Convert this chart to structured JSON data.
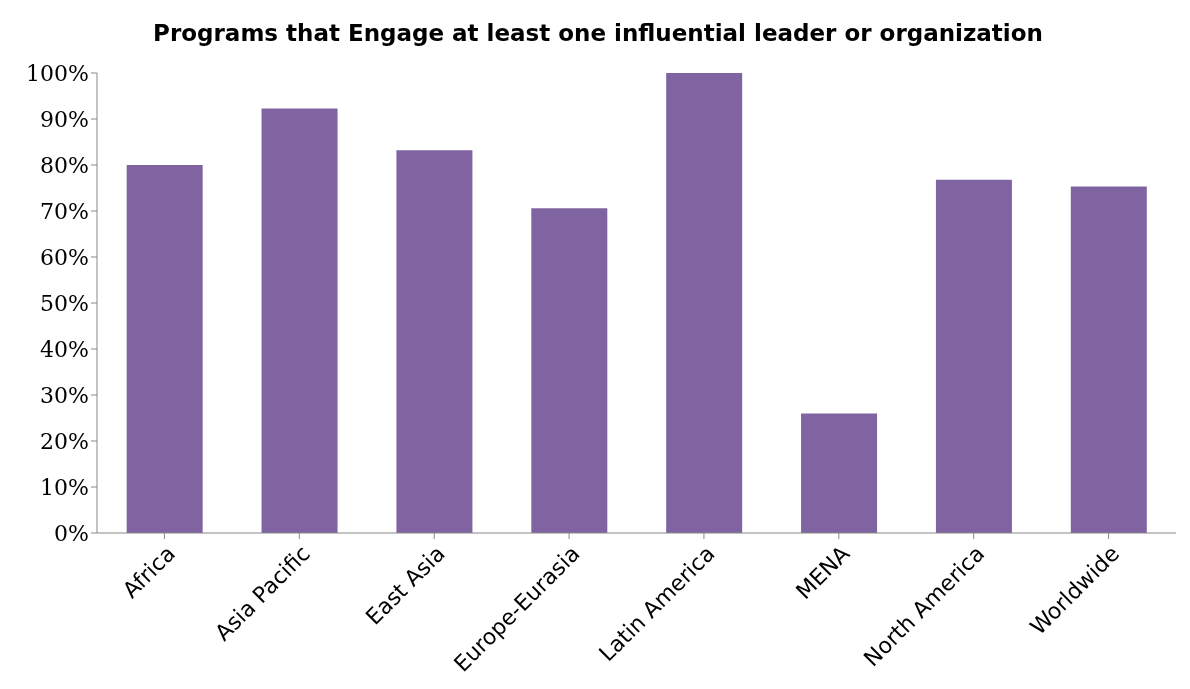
{
  "chart_data": {
    "type": "bar",
    "title": "Programs that Engage at least one influential leader or organization",
    "categories": [
      "Africa",
      "Asia Pacific",
      "East Asia",
      "Europe-Eurasia",
      "Latin America",
      "MENA",
      "North America",
      "Worldwide"
    ],
    "values": [
      80,
      92.3,
      83.2,
      70.6,
      100,
      26,
      76.8,
      75.3
    ],
    "color": "#8064a2",
    "ylim": [
      0,
      100
    ],
    "yticks": [
      {
        "value": 0,
        "label": "0%"
      },
      {
        "value": 10,
        "label": "10%"
      },
      {
        "value": 20,
        "label": "20%"
      },
      {
        "value": 30,
        "label": "30%"
      },
      {
        "value": 40,
        "label": "40%"
      },
      {
        "value": 50,
        "label": "50%"
      },
      {
        "value": 60,
        "label": "60%"
      },
      {
        "value": 70,
        "label": "70%"
      },
      {
        "value": 80,
        "label": "80%"
      },
      {
        "value": 90,
        "label": "90%"
      },
      {
        "value": 100,
        "label": "100%"
      }
    ],
    "grid": false,
    "legend": false
  }
}
